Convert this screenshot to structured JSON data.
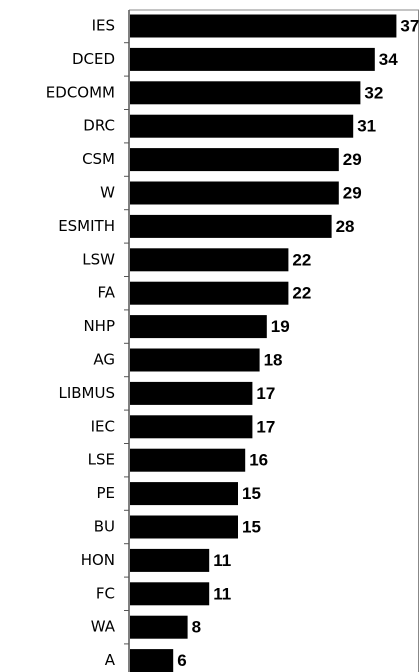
{
  "chart_data": {
    "type": "bar",
    "orientation": "horizontal",
    "categories": [
      "IES",
      "DCED",
      "EDCOMM",
      "DRC",
      "CSM",
      "W",
      "ESMITH",
      "LSW",
      "FA",
      "NHP",
      "AG",
      "LIBMUS",
      "IEC",
      "LSE",
      "PE",
      "BU",
      "HON",
      "FC",
      "WA",
      "A"
    ],
    "values": [
      37,
      34,
      32,
      31,
      29,
      29,
      28,
      22,
      22,
      19,
      18,
      17,
      17,
      16,
      15,
      15,
      11,
      11,
      8,
      6
    ],
    "color": "#000000",
    "xlim": [
      0,
      40
    ]
  }
}
